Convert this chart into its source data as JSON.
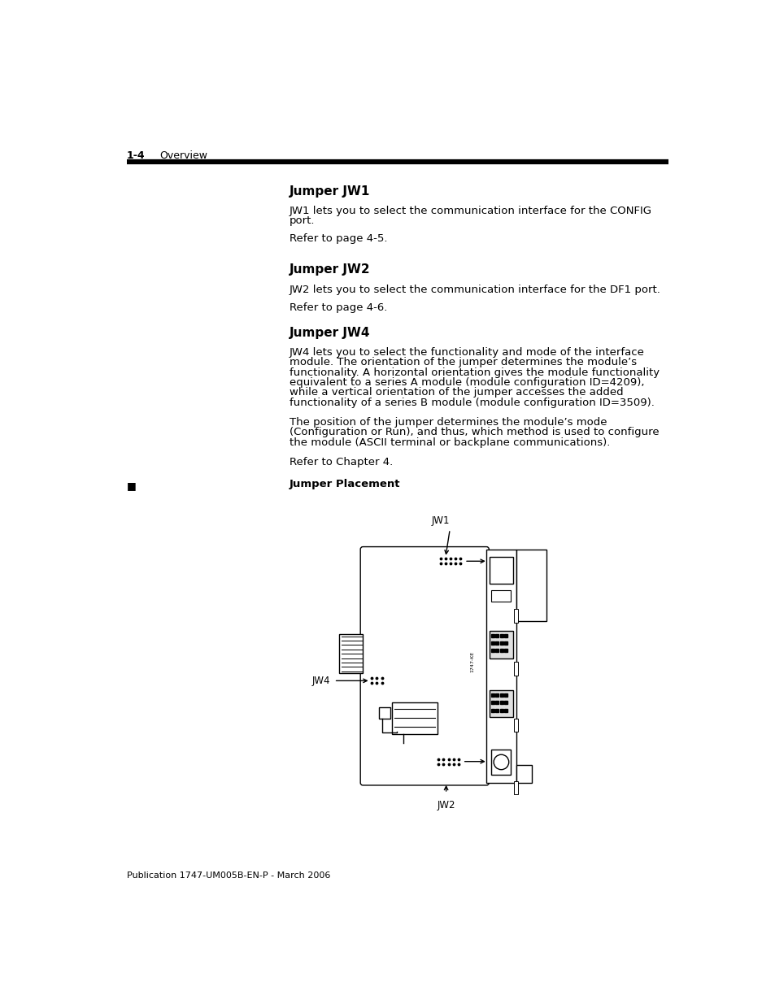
{
  "bg_color": "#ffffff",
  "page_header_left": "1-4",
  "page_header_right": "Overview",
  "footer_text": "Publication 1747-UM005B-EN-P - March 2006",
  "section1_title": "Jumper JW1",
  "section1_body_line1": "JW1 lets you to select the communication interface for the CONFIG",
  "section1_body_line2": "port.",
  "section1_ref": "Refer to page 4-5.",
  "section2_title": "Jumper JW2",
  "section2_body": "JW2 lets you to select the communication interface for the DF1 port.",
  "section2_ref": "Refer to page 4-6.",
  "section3_title": "Jumper JW4",
  "section3_body1_line1": "JW4 lets you to select the functionality and mode of the interface",
  "section3_body1_line2": "module. The orientation of the jumper determines the module’s",
  "section3_body1_line3": "functionality. A horizontal orientation gives the module functionality",
  "section3_body1_line4": "equivalent to a series A module (module configuration ID=4209),",
  "section3_body1_line5": "while a vertical orientation of the jumper accesses the added",
  "section3_body1_line6": "functionality of a series B module (module configuration ID=3509).",
  "section3_body2_line1": "The position of the jumper determines the module’s mode",
  "section3_body2_line2": "(Configuration or Run), and thus, which method is used to configure",
  "section3_body2_line3": "the module (ASCII terminal or backplane communications).",
  "section3_ref": "Refer to Chapter 4.",
  "subsection_label": "Jumper Placement",
  "bullet_char": "■",
  "diagram_jw1_label": "JW1",
  "diagram_jw2_label": "JW2",
  "diagram_jw4_label": "JW4",
  "text_color": "#000000",
  "title_font_size": 11,
  "body_font_size": 9.5,
  "header_font_size": 9,
  "footer_font_size": 8,
  "diagram_font_size": 8.5
}
